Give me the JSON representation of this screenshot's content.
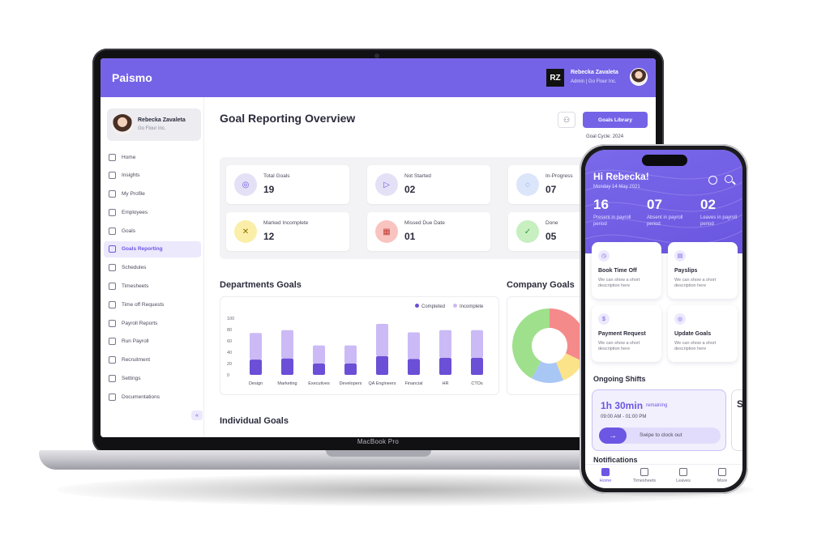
{
  "laptop": {
    "model_label": "MacBook Pro",
    "app": {
      "brand": "Paismo",
      "header_user": {
        "initials": "RZ",
        "name": "Rebecka Zavaleta",
        "role": "Admin | Go Flour Inc."
      },
      "sidebar": {
        "profile": {
          "name": "Rebecka Zavaleta",
          "company": "Go Flour Inc."
        },
        "items": [
          {
            "label": "Home",
            "icon": "home-icon"
          },
          {
            "label": "Insights",
            "icon": "chart-icon"
          },
          {
            "label": "My Profile",
            "icon": "user-icon"
          },
          {
            "label": "Employees",
            "icon": "users-icon"
          },
          {
            "label": "Goals",
            "icon": "target-icon"
          },
          {
            "label": "Goals Reporting",
            "icon": "report-icon",
            "active": true
          },
          {
            "label": "Schedules",
            "icon": "calendar-icon"
          },
          {
            "label": "Timesheets",
            "icon": "clock-icon"
          },
          {
            "label": "Time off Requests",
            "icon": "calendar-off-icon"
          },
          {
            "label": "Payroll Reports",
            "icon": "file-icon"
          },
          {
            "label": "Run Payroll",
            "icon": "play-icon"
          },
          {
            "label": "Recruitment",
            "icon": "briefcase-icon"
          },
          {
            "label": "Settings",
            "icon": "gear-icon"
          },
          {
            "label": "Documentations",
            "icon": "folder-icon"
          }
        ],
        "collapse_glyph": "«"
      },
      "main": {
        "title": "Goal Reporting Overview",
        "hierarchy_glyph": "⚇",
        "goals_library_label": "Goals Library",
        "goal_cycle_label": "Goal Cycle: 2024",
        "stats": [
          {
            "label": "Total Goals",
            "value": "19",
            "icon_bg": "#e4e1f7",
            "icon_color": "#6b57e3",
            "glyph": "◎"
          },
          {
            "label": "Not Started",
            "value": "02",
            "icon_bg": "#e4e1f7",
            "icon_color": "#6b57e3",
            "glyph": "▷"
          },
          {
            "label": "In-Progress",
            "value": "07",
            "icon_bg": "#dbe6fb",
            "icon_color": "#4d7de0",
            "glyph": "◌"
          },
          {
            "label": "Marked Incomplete",
            "value": "12",
            "icon_bg": "#fbeea8",
            "icon_color": "#8a6d00",
            "glyph": "✕"
          },
          {
            "label": "Missed Due Date",
            "value": "01",
            "icon_bg": "#f9c3c0",
            "icon_color": "#c13b33",
            "glyph": "▦"
          },
          {
            "label": "Done",
            "value": "05",
            "icon_bg": "#c7efc0",
            "icon_color": "#2f9b3b",
            "glyph": "✓"
          }
        ],
        "departments_title": "Departments Goals",
        "company_title": "Company Goals",
        "individual_title": "Individual Goals"
      }
    }
  },
  "chart_data": [
    {
      "type": "bar",
      "title": "Departments Goals",
      "categories": [
        "Design",
        "Marketing",
        "Executives",
        "Developers",
        "QA Engineers",
        "Financial",
        "HR",
        "CTOs"
      ],
      "series": [
        {
          "name": "Completed",
          "values": [
            27,
            29,
            20,
            20,
            33,
            28,
            30,
            30
          ],
          "color": "#6b4fd6"
        },
        {
          "name": "Incomplete",
          "values": [
            47,
            50,
            32,
            32,
            57,
            47,
            49,
            49
          ],
          "color": "#cbbaf6"
        }
      ],
      "stacked": true,
      "yticks": [
        0,
        20,
        40,
        60,
        80,
        100
      ],
      "ylim": [
        0,
        100
      ],
      "legend": "top-right",
      "grid": false
    },
    {
      "type": "pie",
      "title": "Company Goals",
      "donut": true,
      "slices": [
        {
          "value": 32,
          "color": "#f58a8a"
        },
        {
          "value": 12,
          "color": "#fbe38a"
        },
        {
          "value": 14,
          "color": "#a9c7f5"
        },
        {
          "value": 42,
          "color": "#9fe08c"
        }
      ]
    }
  ],
  "phone": {
    "greeting": "Hi Rebecka!",
    "date": "Monday 14 May 2021",
    "metrics": [
      {
        "value": "16",
        "label": "Present in payroll period"
      },
      {
        "value": "07",
        "label": "Absent in payroll period"
      },
      {
        "value": "02",
        "label": "Leaves in payroll period"
      }
    ],
    "cards": [
      {
        "title": "Book Time Off",
        "desc": "We can show a short description here",
        "glyph": "◷"
      },
      {
        "title": "Payslips",
        "desc": "We can show a short description here",
        "glyph": "▤"
      },
      {
        "title": "Payment Request",
        "desc": "We can show a short description here",
        "glyph": "$"
      },
      {
        "title": "Update Goals",
        "desc": "We can show a short description here",
        "glyph": "◎"
      }
    ],
    "ongoing_title": "Ongoing Shifts",
    "shift": {
      "duration": "1h 30min",
      "remaining": "remaining",
      "range": "09:00 AM - 01:00 PM",
      "swipe_label": "Swipe to clock out",
      "arrow": "→"
    },
    "peek_letter": "S",
    "notifications_title": "Notifications",
    "tabs": [
      {
        "label": "Home",
        "active": true
      },
      {
        "label": "Timesheets"
      },
      {
        "label": "Leaves"
      },
      {
        "label": "More"
      }
    ]
  }
}
